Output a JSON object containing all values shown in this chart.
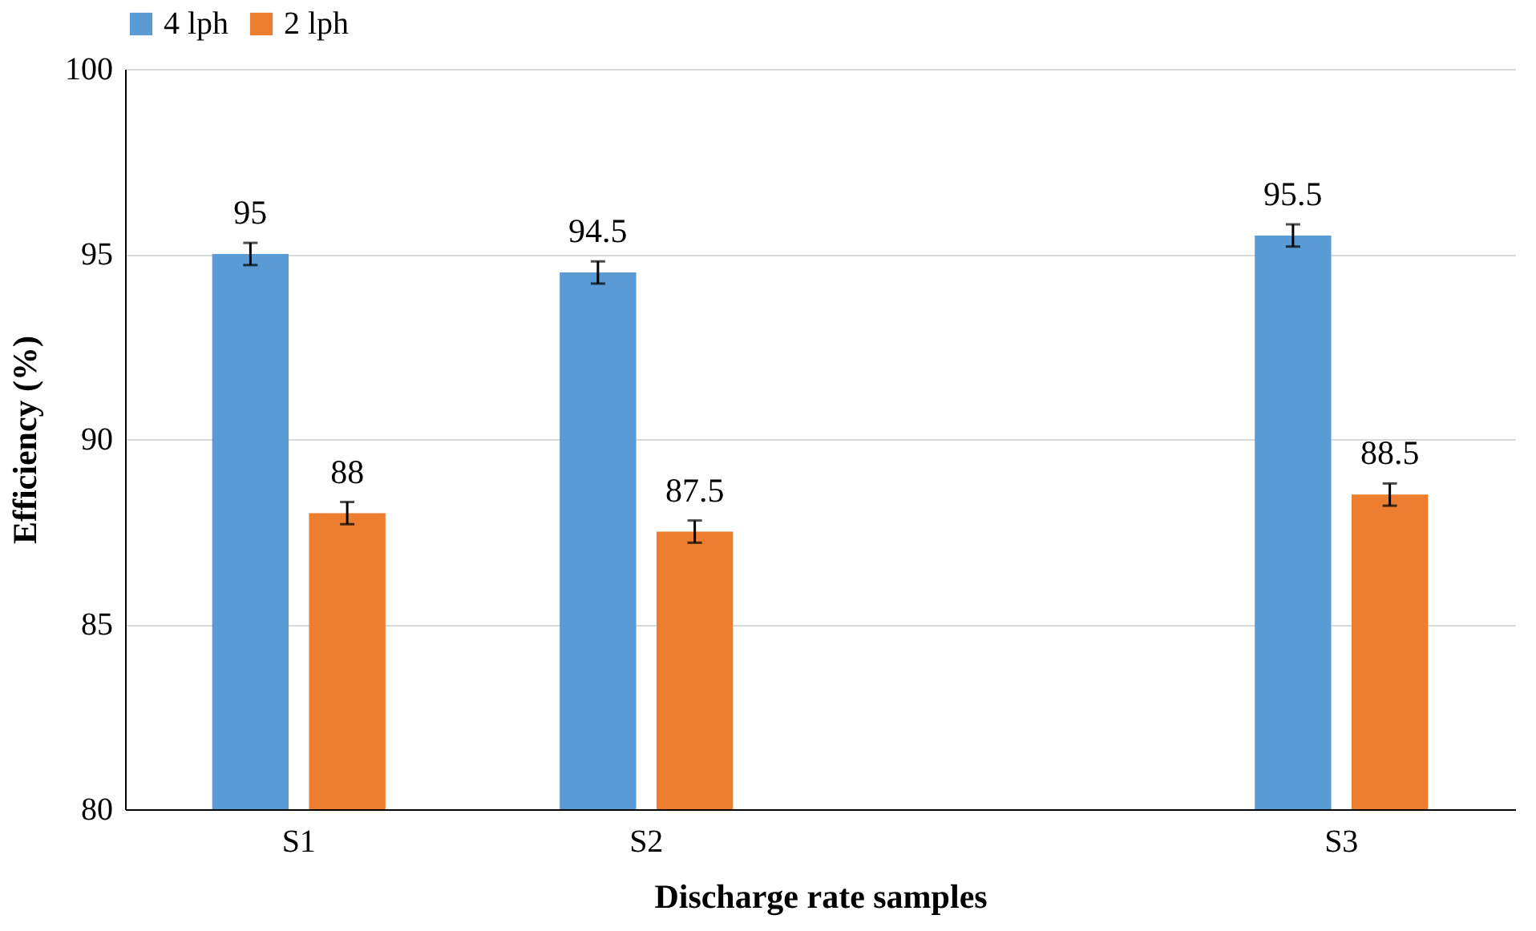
{
  "chart_data": {
    "type": "bar",
    "xlabel": "Discharge rate samples",
    "ylabel": "Efficiency (%)",
    "categories": [
      "S1",
      "S2",
      null,
      "S3"
    ],
    "series": [
      {
        "name": "4 lph",
        "color": "#5b9bd5",
        "values": [
          95,
          94.5,
          null,
          95.5
        ],
        "errors": [
          0.3,
          0.3,
          null,
          0.3
        ]
      },
      {
        "name": "2 lph",
        "color": "#ed7d31",
        "values": [
          88,
          87.5,
          null,
          88.5
        ],
        "errors": [
          0.3,
          0.3,
          null,
          0.3
        ]
      }
    ],
    "ylim": [
      80,
      100
    ],
    "yticks": [
      80,
      85,
      90,
      95,
      100
    ],
    "grid": "y",
    "legend": "top",
    "data_labels": true
  }
}
